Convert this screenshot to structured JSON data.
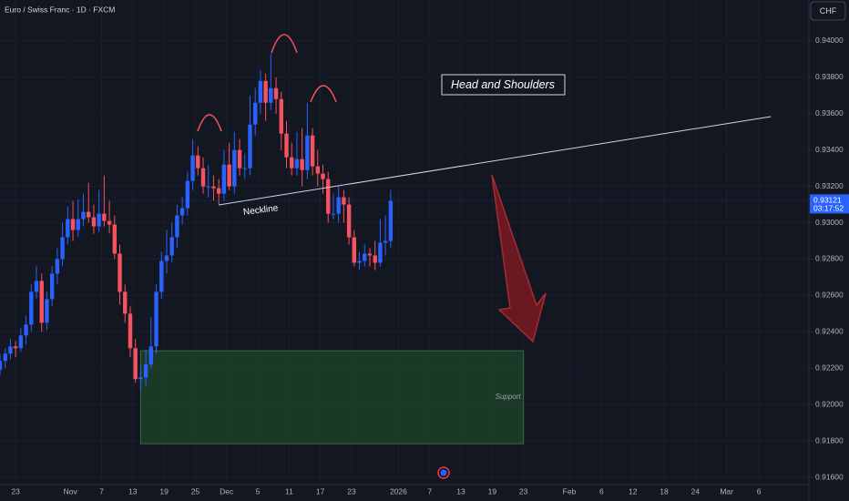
{
  "chart_data": {
    "type": "candlestick",
    "title": "Euro / Swiss Franc · 1D · FXCM",
    "currency": "CHF",
    "up_color": "#2962ff",
    "down_color": "#f7525f",
    "grid": true,
    "open": [
      0.9219,
      0.9224,
      0.9228,
      0.9232,
      0.9231,
      0.9238,
      0.9244,
      0.9262,
      0.9268,
      0.9245,
      0.9258,
      0.9272,
      0.928,
      0.9292,
      0.9302,
      0.9296,
      0.9302,
      0.9306,
      0.9303,
      0.9298,
      0.9305,
      0.9301,
      0.9299,
      0.9283,
      0.9262,
      0.925,
      0.9231,
      0.9214,
      0.9215,
      0.9222,
      0.9232,
      0.9262,
      0.9279,
      0.9282,
      0.9292,
      0.9304,
      0.9308,
      0.9323,
      0.9337,
      0.933,
      0.932,
      0.932,
      0.9319,
      0.9316,
      0.9332,
      0.932,
      0.934,
      0.933,
      0.933,
      0.9354,
      0.9366,
      0.9378,
      0.9366,
      0.9374,
      0.9368,
      0.9349,
      0.9336,
      0.933,
      0.9335,
      0.9329,
      0.9348,
      0.9331,
      0.9327,
      0.9324,
      0.9305,
      0.9305,
      0.9314,
      0.931,
      0.9292,
      0.9278,
      0.9279,
      0.9283,
      0.9282,
      0.9278,
      0.9289,
      0.929
    ],
    "high": [
      0.9228,
      0.9231,
      0.9236,
      0.9235,
      0.9242,
      0.9249,
      0.9266,
      0.9276,
      0.9272,
      0.9262,
      0.9276,
      0.9286,
      0.93,
      0.9309,
      0.9312,
      0.9313,
      0.9316,
      0.9322,
      0.931,
      0.9318,
      0.9326,
      0.9312,
      0.9304,
      0.9288,
      0.9266,
      0.9254,
      0.9236,
      0.9222,
      0.923,
      0.9248,
      0.9266,
      0.9284,
      0.9296,
      0.93,
      0.931,
      0.9314,
      0.9328,
      0.9346,
      0.9342,
      0.9336,
      0.9332,
      0.9326,
      0.9324,
      0.934,
      0.9344,
      0.935,
      0.9346,
      0.9338,
      0.937,
      0.9374,
      0.9384,
      0.9382,
      0.9393,
      0.938,
      0.9372,
      0.9356,
      0.9344,
      0.935,
      0.9352,
      0.9366,
      0.9352,
      0.934,
      0.9332,
      0.9328,
      0.9316,
      0.932,
      0.9318,
      0.9314,
      0.9296,
      0.9284,
      0.9288,
      0.9286,
      0.929,
      0.9302,
      0.9304,
      0.9318
    ],
    "low": [
      0.9216,
      0.922,
      0.9225,
      0.9226,
      0.9229,
      0.9233,
      0.924,
      0.9258,
      0.924,
      0.9241,
      0.9254,
      0.9266,
      0.9276,
      0.9288,
      0.929,
      0.9292,
      0.9298,
      0.93,
      0.9294,
      0.9295,
      0.9298,
      0.9294,
      0.928,
      0.9255,
      0.9245,
      0.9226,
      0.9212,
      0.9208,
      0.921,
      0.922,
      0.9228,
      0.9258,
      0.9272,
      0.9278,
      0.9286,
      0.9299,
      0.9304,
      0.9318,
      0.9326,
      0.9316,
      0.9314,
      0.9312,
      0.931,
      0.9312,
      0.9318,
      0.9316,
      0.9326,
      0.9324,
      0.9326,
      0.9348,
      0.936,
      0.9356,
      0.9362,
      0.936,
      0.934,
      0.933,
      0.9326,
      0.9326,
      0.932,
      0.9324,
      0.9326,
      0.932,
      0.9316,
      0.93,
      0.9302,
      0.93,
      0.93,
      0.9288,
      0.9276,
      0.9274,
      0.9276,
      0.9276,
      0.9274,
      0.9276,
      0.9282,
      0.9286
    ],
    "close": [
      0.9224,
      0.9228,
      0.9232,
      0.9231,
      0.9238,
      0.9244,
      0.9262,
      0.9268,
      0.9245,
      0.9258,
      0.9272,
      0.928,
      0.9292,
      0.9302,
      0.9296,
      0.9302,
      0.9306,
      0.9303,
      0.9298,
      0.9305,
      0.9301,
      0.9299,
      0.9283,
      0.9262,
      0.925,
      0.9231,
      0.9214,
      0.9215,
      0.9222,
      0.9232,
      0.9262,
      0.9279,
      0.9282,
      0.9292,
      0.9304,
      0.9308,
      0.9323,
      0.9337,
      0.933,
      0.932,
      0.932,
      0.9319,
      0.9316,
      0.9332,
      0.932,
      0.934,
      0.933,
      0.933,
      0.9354,
      0.9366,
      0.9378,
      0.9366,
      0.9374,
      0.9368,
      0.9349,
      0.9336,
      0.933,
      0.9335,
      0.9329,
      0.9348,
      0.9331,
      0.9327,
      0.9324,
      0.9305,
      0.9305,
      0.9314,
      0.931,
      0.9292,
      0.9278,
      0.9279,
      0.9283,
      0.9282,
      0.9278,
      0.9289,
      0.929,
      0.9312
    ],
    "ylim": [
      0.9156,
      0.94225
    ],
    "yticks": [
      {
        "value": 0.916,
        "label": "0.91600"
      },
      {
        "value": 0.918,
        "label": "0.91800"
      },
      {
        "value": 0.92,
        "label": "0.92000"
      },
      {
        "value": 0.922,
        "label": "0.92200"
      },
      {
        "value": 0.924,
        "label": "0.92400"
      },
      {
        "value": 0.926,
        "label": "0.92600"
      },
      {
        "value": 0.928,
        "label": "0.92800"
      },
      {
        "value": 0.93,
        "label": "0.93000"
      },
      {
        "value": 0.932,
        "label": "0.93200"
      },
      {
        "value": 0.934,
        "label": "0.93400"
      },
      {
        "value": 0.936,
        "label": "0.93600"
      },
      {
        "value": 0.938,
        "label": "0.93800"
      },
      {
        "value": 0.94,
        "label": "0.94000"
      }
    ],
    "xlim": [
      0,
      155.3
    ],
    "xticks": [
      {
        "value": 3,
        "label": "23"
      },
      {
        "value": 13.5,
        "label": "Nov"
      },
      {
        "value": 19.5,
        "label": "7"
      },
      {
        "value": 25.5,
        "label": "13"
      },
      {
        "value": 31.5,
        "label": "19"
      },
      {
        "value": 37.5,
        "label": "25"
      },
      {
        "value": 43.5,
        "label": "Dec"
      },
      {
        "value": 49.5,
        "label": "5"
      },
      {
        "value": 55.5,
        "label": "11"
      },
      {
        "value": 61.5,
        "label": "17"
      },
      {
        "value": 67.5,
        "label": "23"
      },
      {
        "value": 76.5,
        "label": "2026"
      },
      {
        "value": 82.5,
        "label": "7"
      },
      {
        "value": 88.5,
        "label": "13"
      },
      {
        "value": 94.5,
        "label": "19"
      },
      {
        "value": 100.5,
        "label": "23"
      },
      {
        "value": 109.3,
        "label": "Feb"
      },
      {
        "value": 115.5,
        "label": "6"
      },
      {
        "value": 121.5,
        "label": "12"
      },
      {
        "value": 127.5,
        "label": "18"
      },
      {
        "value": 133.5,
        "label": "24"
      },
      {
        "value": 139.5,
        "label": "Mar"
      },
      {
        "value": 145.7,
        "label": "6"
      }
    ],
    "last_price": 0.93121,
    "countdown": "03:17:52",
    "pattern_label": "Head and Shoulders",
    "neckline": {
      "label": "Neckline",
      "x": [
        42,
        148
      ],
      "y": [
        0.93098,
        0.93584
      ]
    },
    "support": {
      "label": "Support",
      "x": [
        27,
        100.5
      ],
      "y": [
        0.91785,
        0.92296
      ]
    }
  }
}
